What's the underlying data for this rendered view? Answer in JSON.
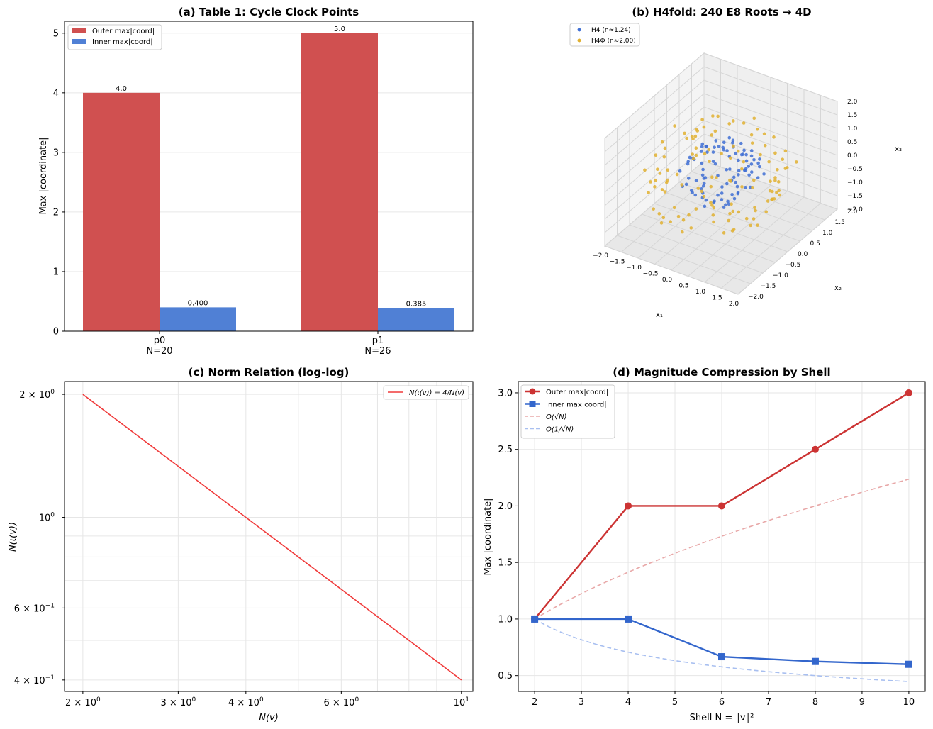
{
  "chart_data": [
    {
      "panel": "a",
      "type": "bar",
      "title": "(a) Table 1: Cycle Clock Points",
      "xlabel": "",
      "ylabel": "Max |coordinate|",
      "ylim": [
        0,
        5.2
      ],
      "yticks": [
        0,
        1,
        2,
        3,
        4,
        5
      ],
      "categories": [
        "p0\nN=20",
        "p1\nN=26"
      ],
      "series": [
        {
          "name": "Outer max|coord|",
          "color": "#d05050",
          "values": [
            4.0,
            5.0
          ],
          "labels": [
            "4.0",
            "5.0"
          ]
        },
        {
          "name": "Inner max|coord|",
          "color": "#5080d5",
          "values": [
            0.4,
            0.385
          ],
          "labels": [
            "0.400",
            "0.385"
          ]
        }
      ],
      "legend": "top-left",
      "grid": true
    },
    {
      "panel": "b",
      "type": "scatter",
      "title": "(b) H4fold: 240 E8 Roots → 4D",
      "axis_labels": {
        "x": "x₁",
        "y": "x₂",
        "z": "x₃"
      },
      "ticks": [
        "−2.0",
        "−1.5",
        "−1.0",
        "−0.5",
        "0.0",
        "0.5",
        "1.0",
        "1.5",
        "2.0"
      ],
      "range": [
        -2.0,
        2.0
      ],
      "series": [
        {
          "name": "H4 (n≈1.24)",
          "color": "#3f6fd4",
          "description": "inner cluster of projected roots"
        },
        {
          "name": "H4Φ (n≈2.00)",
          "color": "#e0b030",
          "description": "outer shell of projected roots"
        }
      ],
      "legend": "top-left"
    },
    {
      "panel": "c",
      "type": "line",
      "title": "(c) Norm Relation (log-log)",
      "xlabel": "N(v)",
      "ylabel": "N(ι(v))",
      "xscale": "log",
      "yscale": "log",
      "xlim": [
        1.85,
        10.5
      ],
      "ylim": [
        0.375,
        2.15
      ],
      "xticks": [
        {
          "value": 2,
          "base": "2 × 10",
          "exp": "0"
        },
        {
          "value": 3,
          "base": "3 × 10",
          "exp": "0"
        },
        {
          "value": 4,
          "base": "4 × 10",
          "exp": "0"
        },
        {
          "value": 6,
          "base": "6 × 10",
          "exp": "0"
        },
        {
          "value": 10,
          "base": "10",
          "exp": "1"
        }
      ],
      "yticks": [
        {
          "value": 2,
          "base": "2 × 10",
          "exp": "0"
        },
        {
          "value": 1,
          "base": "10",
          "exp": "0"
        },
        {
          "value": 0.6,
          "base": "6 × 10",
          "exp": "−1"
        },
        {
          "value": 0.4,
          "base": "4 × 10",
          "exp": "−1"
        }
      ],
      "series": [
        {
          "name": "N(ι(v)) = 4/N(v)",
          "color": "#f03a3a",
          "x": [
            2,
            10
          ],
          "y": [
            2.0,
            0.4
          ]
        }
      ],
      "legend": "top-right",
      "grid": true
    },
    {
      "panel": "d",
      "type": "line",
      "title": "(d) Magnitude Compression by Shell",
      "xlabel": "Shell N = ‖v‖²",
      "ylabel": "Max |coordinate|",
      "xlim": [
        1.65,
        10.35
      ],
      "ylim": [
        0.36,
        3.1
      ],
      "xticks": [
        2,
        3,
        4,
        5,
        6,
        7,
        8,
        9,
        10
      ],
      "yticks": [
        0.5,
        1.0,
        1.5,
        2.0,
        2.5,
        3.0
      ],
      "series": [
        {
          "name": "Outer max|coord|",
          "color": "#cc3333",
          "marker": "circle",
          "x": [
            2,
            4,
            6,
            8,
            10
          ],
          "y": [
            1.0,
            2.0,
            2.0,
            2.5,
            3.0
          ]
        },
        {
          "name": "Inner max|coord|",
          "color": "#3366cc",
          "marker": "square",
          "x": [
            2,
            4,
            6,
            8,
            10
          ],
          "y": [
            1.0,
            1.0,
            0.667,
            0.625,
            0.6
          ]
        },
        {
          "name": "O(√N)",
          "color": "#e8a8a8",
          "dashed": true,
          "function": "sqrt(N/2)"
        },
        {
          "name": "O(1/√N)",
          "color": "#a8bff0",
          "dashed": true,
          "function": "sqrt(2/N)"
        }
      ],
      "legend": "top-left",
      "grid": true
    }
  ]
}
